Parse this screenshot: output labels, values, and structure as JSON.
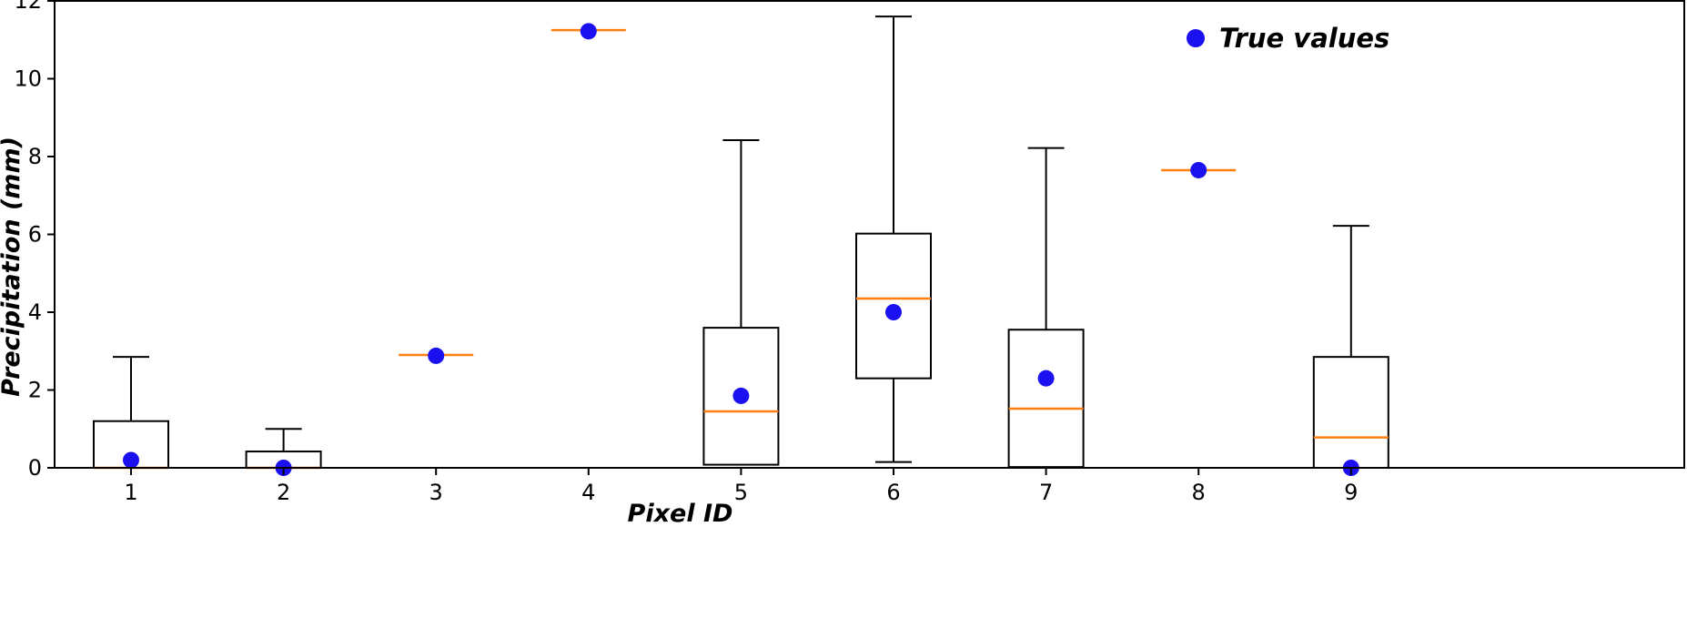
{
  "chart_data": {
    "type": "box",
    "xlabel": "Pixel ID",
    "ylabel": "Precipitation (mm)",
    "ylim": [
      0,
      12
    ],
    "yticks": [
      0,
      2,
      4,
      6,
      8,
      10,
      12
    ],
    "categories": [
      "1",
      "2",
      "3",
      "4",
      "5",
      "6",
      "7",
      "8",
      "9"
    ],
    "boxes": [
      {
        "category": "1",
        "whisker_low": 0.0,
        "q1": 0.0,
        "median": 0.0,
        "q3": 1.2,
        "whisker_high": 2.85
      },
      {
        "category": "2",
        "whisker_low": 0.0,
        "q1": 0.0,
        "median": 0.0,
        "q3": 0.42,
        "whisker_high": 1.0
      },
      {
        "category": "3",
        "whisker_low": 2.9,
        "q1": 2.9,
        "median": 2.9,
        "q3": 2.9,
        "whisker_high": 2.9
      },
      {
        "category": "4",
        "whisker_low": 11.25,
        "q1": 11.25,
        "median": 11.25,
        "q3": 11.25,
        "whisker_high": 11.25
      },
      {
        "category": "5",
        "whisker_low": 0.08,
        "q1": 0.08,
        "median": 1.45,
        "q3": 3.6,
        "whisker_high": 8.42
      },
      {
        "category": "6",
        "whisker_low": 0.15,
        "q1": 2.3,
        "median": 4.35,
        "q3": 6.02,
        "whisker_high": 11.6
      },
      {
        "category": "7",
        "whisker_low": 0.02,
        "q1": 0.02,
        "median": 1.52,
        "q3": 3.55,
        "whisker_high": 8.22
      },
      {
        "category": "8",
        "whisker_low": 7.65,
        "q1": 7.65,
        "median": 7.65,
        "q3": 7.65,
        "whisker_high": 7.65
      },
      {
        "category": "9",
        "whisker_low": 0.0,
        "q1": 0.0,
        "median": 0.78,
        "q3": 2.85,
        "whisker_high": 6.22
      }
    ],
    "series": [
      {
        "name": "True values",
        "values": [
          0.2,
          0.0,
          2.88,
          11.22,
          1.85,
          4.0,
          2.3,
          7.65,
          0.0
        ]
      }
    ],
    "legend": {
      "placement": "top-right"
    },
    "grid": false,
    "colors": {
      "box": "#000000",
      "median": "#ff7f0e",
      "points": "#1a10f0"
    }
  }
}
